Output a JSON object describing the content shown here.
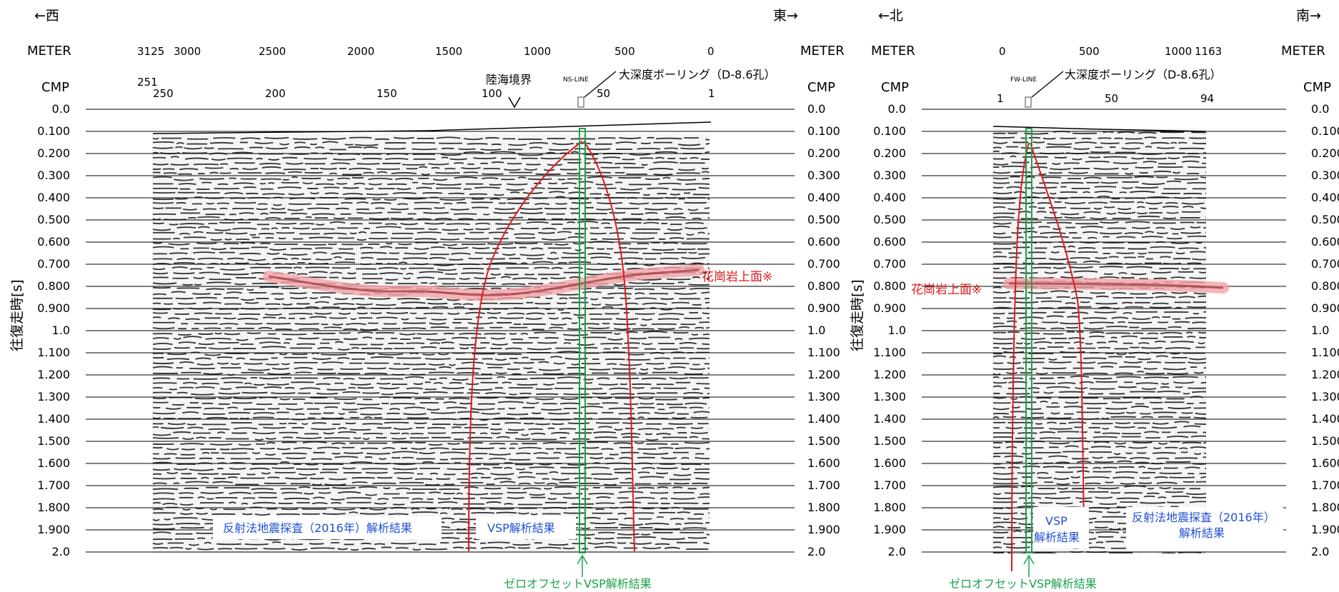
{
  "left": {
    "west": "←西",
    "east": "東→",
    "meter_label": "METER",
    "meter_right": "METER",
    "cmp_label": "CMP",
    "cmp_right": "CMP",
    "meter_ticks": [
      "3125",
      "3000",
      "2500",
      "2000",
      "1500",
      "1000",
      "500",
      "0"
    ],
    "cmp_ticks": [
      "251",
      "250",
      "200",
      "150",
      "100",
      "50",
      "1"
    ],
    "boundary": "陸海境界",
    "ns_line": "NS-LINE",
    "borehole": "大深度ボーリング（D-8.6孔）",
    "granite": "花崗岩上面※",
    "reflection": "反射法地震探査（2016年）解析結果",
    "vsp": "VSP解析結果",
    "zero_offset": "ゼロオフセットVSP解析結果",
    "ylabel": "往復走時[s]"
  },
  "right": {
    "north": "←北",
    "south": "南→",
    "meter_label": "METER",
    "meter_right": "METER",
    "cmp_label": "CMP",
    "cmp_right": "CMP",
    "meter_ticks": [
      "0",
      "500",
      "1000",
      "1163"
    ],
    "cmp_ticks": [
      "1",
      "50",
      "94"
    ],
    "fw_line": "FW-LINE",
    "borehole": "大深度ボーリング（D-8.6孔）",
    "granite": "花崗岩上面※",
    "reflection_1": "反射法地震探査（2016年）",
    "reflection_2": "解析結果",
    "vsp_1": "VSP",
    "vsp_2": "解析結果",
    "zero_offset": "ゼロオフセットVSP解析結果",
    "ylabel": "往復走時[s]"
  },
  "time_ticks": [
    "0.0",
    "0.100",
    "0.200",
    "0.300",
    "0.400",
    "0.500",
    "0.600",
    "0.700",
    "0.800",
    "0.900",
    "1.0",
    "1.100",
    "1.200",
    "1.300",
    "1.400",
    "1.500",
    "1.600",
    "1.700",
    "1.800",
    "1.900",
    "2.0"
  ],
  "colors": {
    "red": "#e0191b",
    "pink": "#f4a3a6",
    "green": "#1aa34a",
    "blue": "#1f4fd6"
  }
}
